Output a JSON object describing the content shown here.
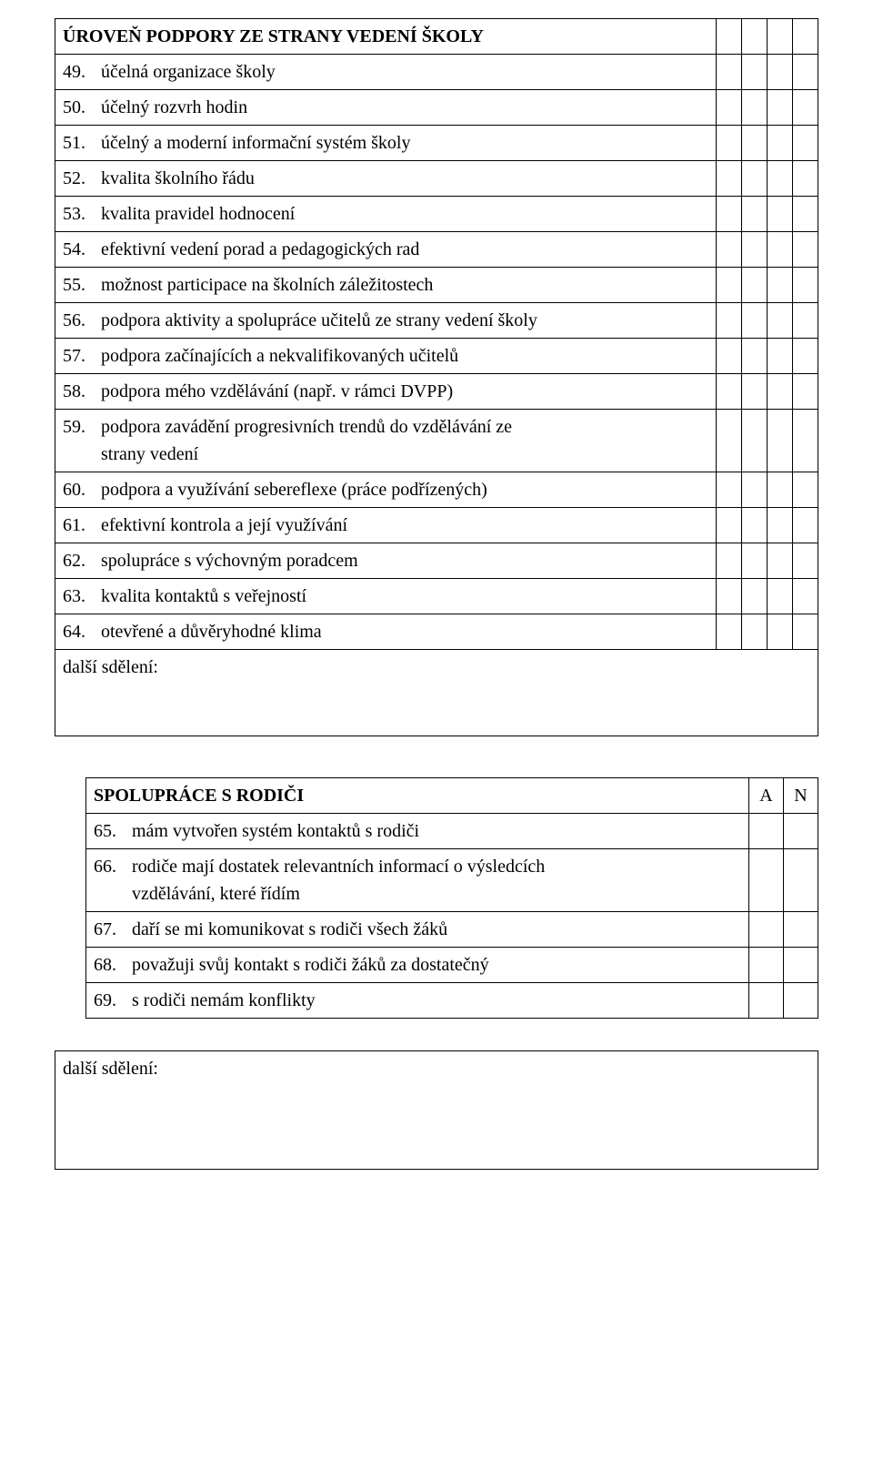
{
  "table1": {
    "section_header": "ÚROVEŇ PODPORY ZE STRANY VEDENÍ ŠKOLY",
    "rows": [
      {
        "num": "49.",
        "text": "účelná organizace školy"
      },
      {
        "num": "50.",
        "text": "účelný rozvrh hodin"
      },
      {
        "num": "51.",
        "text": "účelný a moderní informační systém školy"
      },
      {
        "num": "52.",
        "text": "kvalita školního řádu"
      },
      {
        "num": "53.",
        "text": "kvalita pravidel hodnocení"
      },
      {
        "num": "54.",
        "text": "efektivní vedení porad a pedagogických rad"
      },
      {
        "num": "55.",
        "text": "možnost participace na školních záležitostech"
      },
      {
        "num": "56.",
        "text": "podpora aktivity a spolupráce učitelů ze strany vedení školy"
      },
      {
        "num": "57.",
        "text": "podpora začínajících a nekvalifikovaných učitelů"
      },
      {
        "num": "58.",
        "text": "podpora mého vzdělávání (např. v rámci DVPP)"
      },
      {
        "num": "59.",
        "text": "podpora zavádění progresivních trendů do vzdělávání ze",
        "text2": "strany vedení"
      },
      {
        "num": "60.",
        "text": "podpora a využívání sebereflexe (práce podřízených)"
      },
      {
        "num": "61.",
        "text": "efektivní kontrola a její využívání"
      },
      {
        "num": "62.",
        "text": "spolupráce s výchovným poradcem"
      },
      {
        "num": "63.",
        "text": "kvalita kontaktů s veřejností"
      },
      {
        "num": "64.",
        "text": "otevřené a důvěryhodné klima"
      }
    ],
    "dalsi": "další sdělení:"
  },
  "table2": {
    "section_header": "SPOLUPRÁCE S RODIČI",
    "col_a": "A",
    "col_n": "N",
    "rows": [
      {
        "num": "65.",
        "text": "mám vytvořen systém kontaktů s rodiči"
      },
      {
        "num": "66.",
        "text": "rodiče mají dostatek relevantních informací o výsledcích",
        "text2": "vzdělávání, které řídím"
      },
      {
        "num": "67.",
        "text": "daří se mi komunikovat s rodiči všech žáků"
      },
      {
        "num": "68.",
        "text": "považuji svůj kontakt s rodiči žáků za dostatečný"
      },
      {
        "num": "69.",
        "text": "s rodiči nemám konflikty"
      }
    ],
    "dalsi": "další sdělení:"
  }
}
